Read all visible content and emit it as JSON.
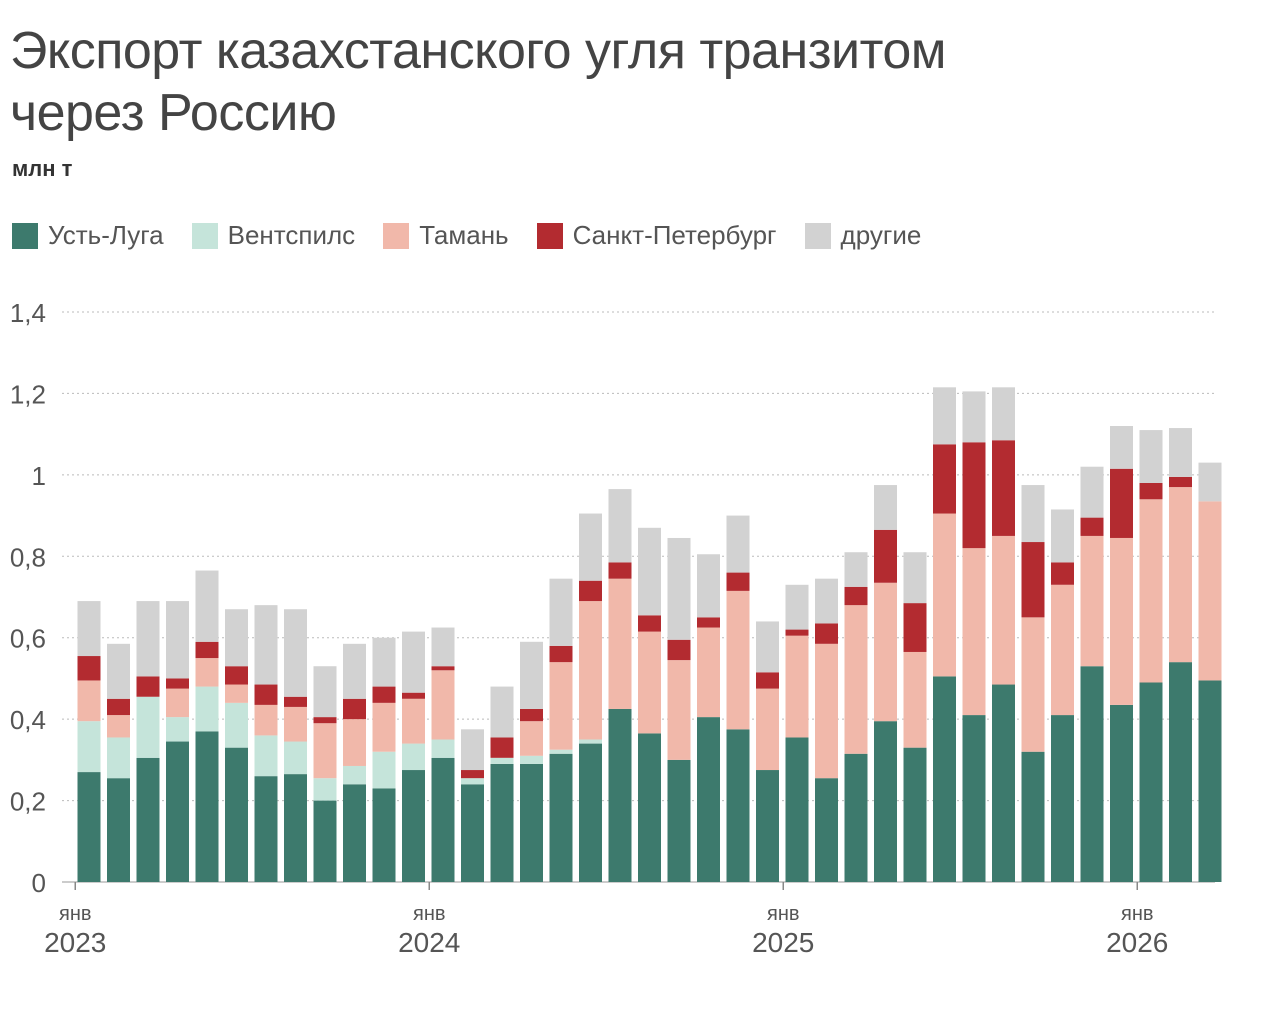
{
  "title": "Экспорт казахстанского угля транзитом через Россию",
  "unit": "млн т",
  "colors": {
    "ust_luga": "#3d7a6d",
    "ventspils": "#c5e4da",
    "taman": "#f1b8aa",
    "spb": "#b32b30",
    "other": "#d2d2d2"
  },
  "chart_data": {
    "type": "bar",
    "stacked": true,
    "title": "Экспорт казахстанского угля транзитом через Россию",
    "ylabel": "млн т",
    "ylim": [
      0,
      1.4
    ],
    "yticks": [
      "0",
      "0,2",
      "0,4",
      "0,6",
      "0,8",
      "1",
      "1,2",
      "1,4"
    ],
    "yticks_values": [
      0,
      0.2,
      0.4,
      0.6,
      0.8,
      1.0,
      1.2,
      1.4
    ],
    "grid": true,
    "legend_position": "top-left",
    "x_ticks": [
      {
        "month": "янв",
        "year": "2023",
        "index": 0
      },
      {
        "month": "янв",
        "year": "2024",
        "index": 12
      },
      {
        "month": "янв",
        "year": "2025",
        "index": 24
      },
      {
        "month": "янв",
        "year": "2026",
        "index": 36
      }
    ],
    "categories": [
      "2023-01",
      "2023-02",
      "2023-03",
      "2023-04",
      "2023-05",
      "2023-06",
      "2023-07",
      "2023-08",
      "2023-09",
      "2023-10",
      "2023-11",
      "2023-12",
      "2024-01",
      "2024-02",
      "2024-03",
      "2024-04",
      "2024-05",
      "2024-06",
      "2024-07",
      "2024-08",
      "2024-09",
      "2024-10",
      "2024-11",
      "2024-12",
      "2025-01",
      "2025-02",
      "2025-03",
      "2025-04",
      "2025-05",
      "2025-06",
      "2025-07",
      "2025-08",
      "2025-09",
      "2025-10",
      "2025-11",
      "2025-12",
      "2026-01",
      "2026-02",
      "2026-03"
    ],
    "series": [
      {
        "name": "Усть-Луга",
        "color_key": "ust_luga",
        "values": [
          0.27,
          0.255,
          0.305,
          0.345,
          0.37,
          0.33,
          0.26,
          0.265,
          0.2,
          0.24,
          0.23,
          0.275,
          0.305,
          0.24,
          0.29,
          0.29,
          0.315,
          0.34,
          0.425,
          0.365,
          0.3,
          0.405,
          0.375,
          0.275,
          0.355,
          0.255,
          0.315,
          0.395,
          0.33,
          0.505,
          0.41,
          0.485,
          0.32,
          0.41,
          0.53,
          0.435,
          0.49,
          0.54,
          0.495
        ]
      },
      {
        "name": "Вентспилс",
        "color_key": "ventspils",
        "values": [
          0.125,
          0.1,
          0.15,
          0.06,
          0.11,
          0.11,
          0.1,
          0.08,
          0.055,
          0.045,
          0.09,
          0.065,
          0.045,
          0.015,
          0.015,
          0.02,
          0.01,
          0.01,
          0,
          0,
          0,
          0,
          0,
          0,
          0,
          0,
          0,
          0,
          0,
          0,
          0,
          0,
          0,
          0,
          0,
          0,
          0,
          0,
          0
        ]
      },
      {
        "name": "Тамань",
        "color_key": "taman",
        "values": [
          0.1,
          0.055,
          0,
          0.07,
          0.07,
          0.045,
          0.075,
          0.085,
          0.135,
          0.115,
          0.12,
          0.11,
          0.17,
          0,
          0,
          0.085,
          0.215,
          0.34,
          0.32,
          0.25,
          0.245,
          0.22,
          0.34,
          0.2,
          0.25,
          0.33,
          0.365,
          0.34,
          0.235,
          0.4,
          0.41,
          0.365,
          0.33,
          0.32,
          0.32,
          0.41,
          0.45,
          0.43,
          0.44
        ]
      },
      {
        "name": "Санкт-Петербург",
        "color_key": "spb",
        "values": [
          0.06,
          0.04,
          0.05,
          0.025,
          0.04,
          0.045,
          0.05,
          0.025,
          0.015,
          0.05,
          0.04,
          0.015,
          0.01,
          0.02,
          0.05,
          0.03,
          0.04,
          0.05,
          0.04,
          0.04,
          0.05,
          0.025,
          0.045,
          0.04,
          0.015,
          0.05,
          0.045,
          0.13,
          0.12,
          0.17,
          0.26,
          0.235,
          0.185,
          0.055,
          0.045,
          0.17,
          0.04,
          0.025,
          0
        ]
      },
      {
        "name": "другие",
        "color_key": "other",
        "values": [
          0.135,
          0.135,
          0.185,
          0.19,
          0.175,
          0.14,
          0.195,
          0.215,
          0.125,
          0.135,
          0.12,
          0.15,
          0.095,
          0.1,
          0.125,
          0.165,
          0.165,
          0.165,
          0.18,
          0.215,
          0.25,
          0.155,
          0.14,
          0.125,
          0.11,
          0.11,
          0.085,
          0.11,
          0.125,
          0.14,
          0.125,
          0.13,
          0.14,
          0.13,
          0.125,
          0.105,
          0.13,
          0.12,
          0.095
        ]
      }
    ]
  }
}
